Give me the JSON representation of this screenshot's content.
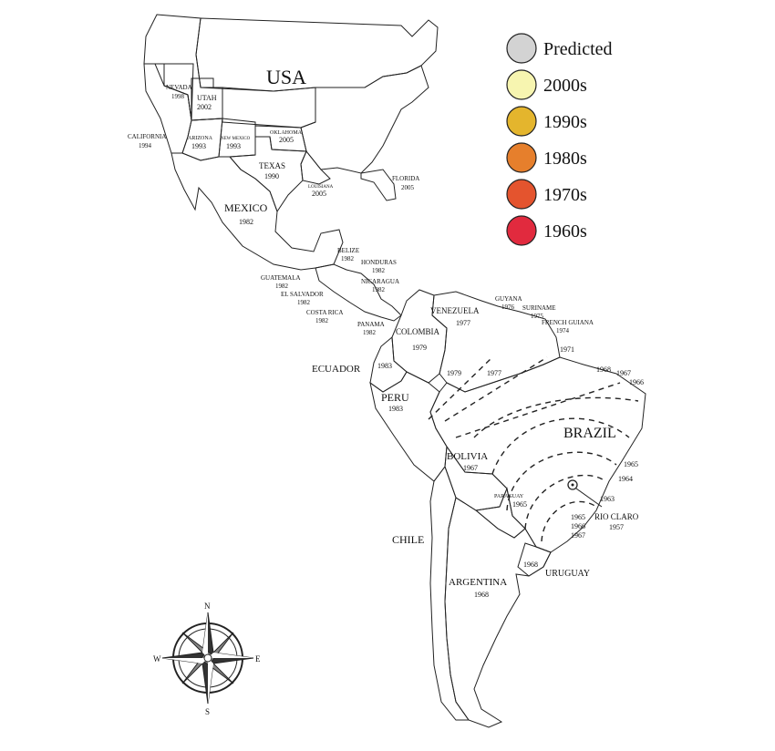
{
  "colors": {
    "predicted": "#d3d3d3",
    "y2000s": "#f7f5b0",
    "y1990s": "#e4b52d",
    "y1980s": "#e67f2c",
    "y1970s": "#e4542e",
    "y1960s": "#e12a3e",
    "usa_north": "#ffffff",
    "outline": "#222222"
  },
  "legend": [
    {
      "label": "Predicted",
      "color_key": "predicted"
    },
    {
      "label": "2000s",
      "color_key": "y2000s"
    },
    {
      "label": "1990s",
      "color_key": "y1990s"
    },
    {
      "label": "1980s",
      "color_key": "y1980s"
    },
    {
      "label": "1970s",
      "color_key": "y1970s"
    },
    {
      "label": "1960s",
      "color_key": "y1960s"
    }
  ],
  "countries": {
    "usa": "USA",
    "mexico": "MEXICO",
    "mexico_year": "1982",
    "belize": "BELIZE",
    "belize_year": "1982",
    "honduras": "HONDURAS",
    "honduras_year": "1982",
    "nicaragua": "NICARAGUA",
    "nicaragua_year": "1982",
    "guatemala": "GUATEMALA",
    "guatemala_year": "1982",
    "el_salvador": "EL SALVADOR",
    "el_salvador_year": "1982",
    "costa_rica": "COSTA RICA",
    "costa_rica_year": "1982",
    "panama": "PANAMA",
    "panama_year": "1982",
    "guyana": "GUYANA",
    "guyana_year": "1976",
    "suriname": "SURINAME",
    "suriname_year": "1975",
    "french_guiana": "FRENCH GUIANA",
    "french_guiana_year": "1974",
    "venezuela": "VENEZUELA",
    "venezuela_year": "1977",
    "colombia": "COLOMBIA",
    "colombia_year": "1979",
    "ecuador": "ECUADOR",
    "ecuador_year": "1983",
    "peru": "PERU",
    "peru_year": "1983",
    "brazil": "BRAZIL",
    "bolivia": "BOLIVIA",
    "bolivia_year": "1967",
    "paraguay": "PARAGUAY",
    "paraguay_year": "1965",
    "chile": "CHILE",
    "argentina": "ARGENTINA",
    "argentina_year": "1968",
    "uruguay": "URUGUAY",
    "uruguay_year": "1968",
    "rio_claro": "RIO CLARO",
    "rio_claro_year": "1957"
  },
  "states": {
    "california": "CALIFORNIA",
    "california_year": "1994",
    "nevada": "NEVADA",
    "nevada_year": "1998",
    "utah": "UTAH",
    "utah_year": "2002",
    "arizona": "ARIZONA",
    "arizona_year": "1993",
    "new_mexico": "NEW MEXICO",
    "new_mexico_year": "1993",
    "oklahoma": "OKLAHOMA",
    "oklahoma_year": "2005",
    "texas": "TEXAS",
    "texas_year": "1990",
    "louisiana": "LOUISIANA",
    "louisiana_year": "2005",
    "florida": "FLORIDA",
    "florida_year": "2005"
  },
  "brazil_years": [
    "1979",
    "1977",
    "1971",
    "1968",
    "1967",
    "1966",
    "1965",
    "1964",
    "1963",
    "1965",
    "1966",
    "1967"
  ],
  "compass": {
    "n": "N",
    "s": "S",
    "e": "E",
    "w": "W"
  }
}
